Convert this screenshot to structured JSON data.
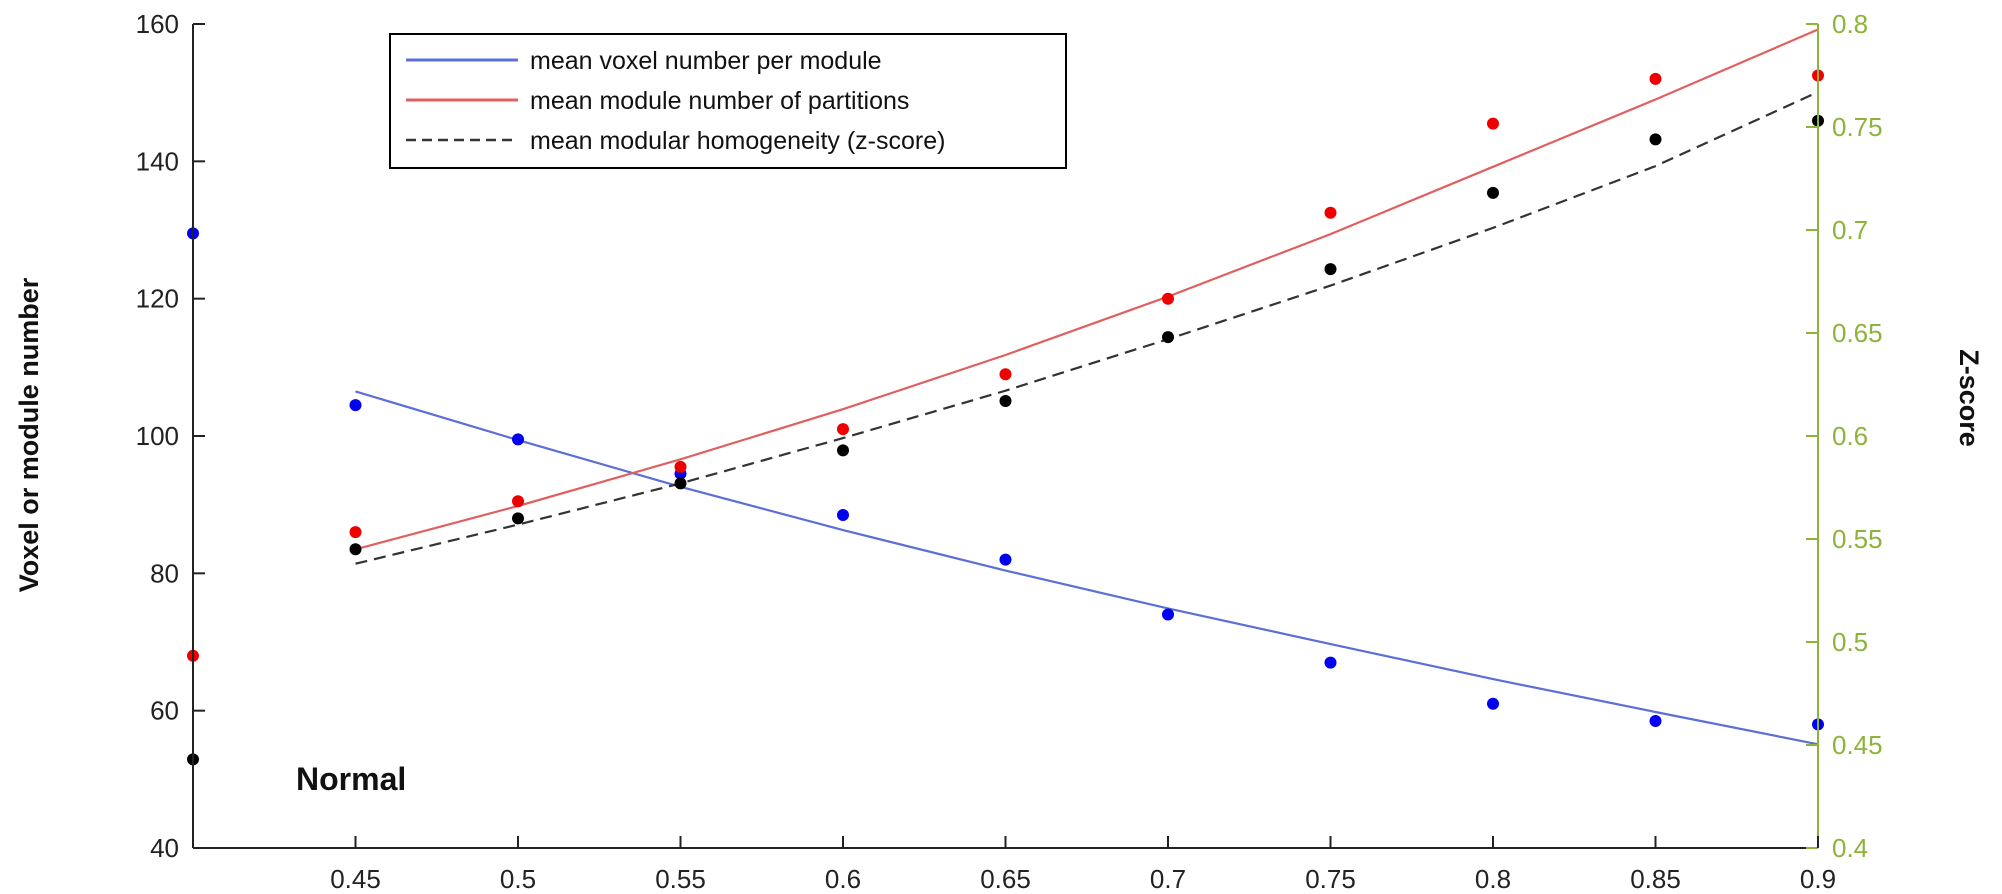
{
  "chart_data": {
    "type": "scatter",
    "annotation": "Normal",
    "ylabel_left": "Voxel or module number",
    "ylabel_right": "Z-score",
    "xlim": [
      0.4,
      0.9
    ],
    "ylim_left": [
      40,
      160
    ],
    "ylim_right": [
      0.4,
      0.8
    ],
    "x_ticks": [
      0.45,
      0.5,
      0.55,
      0.6,
      0.65,
      0.7,
      0.75,
      0.8,
      0.85,
      0.9
    ],
    "x_tick_labels": [
      "0.45",
      "0.5",
      "0.55",
      "0.6",
      "0.65",
      "0.7",
      "0.75",
      "0.8",
      "0.85",
      "0.9"
    ],
    "y_left_ticks": [
      40,
      60,
      80,
      100,
      120,
      140,
      160
    ],
    "y_left_tick_labels": [
      "40",
      "60",
      "80",
      "100",
      "120",
      "140",
      "160"
    ],
    "y_right_ticks": [
      0.4,
      0.45,
      0.5,
      0.55,
      0.6,
      0.65,
      0.7,
      0.75,
      0.8
    ],
    "y_right_tick_labels": [
      "0.4",
      "0.45",
      "0.5",
      "0.55",
      "0.6",
      "0.65",
      "0.7",
      "0.75",
      "0.8"
    ],
    "grid": false,
    "legend_position": "top-center",
    "series": [
      {
        "name": "mean voxel number per module",
        "axis": "left",
        "color": "#0000ee",
        "line_color": "#5b6fd6",
        "line_style": "solid",
        "points": [
          [
            0.4,
            129.5
          ],
          [
            0.45,
            104.5
          ],
          [
            0.5,
            99.5
          ],
          [
            0.55,
            94.5
          ],
          [
            0.6,
            88.5
          ],
          [
            0.65,
            82
          ],
          [
            0.7,
            74
          ],
          [
            0.75,
            67
          ],
          [
            0.8,
            61
          ],
          [
            0.85,
            58.5
          ],
          [
            0.9,
            58
          ]
        ],
        "fit": [
          [
            0.45,
            106.5
          ],
          [
            0.5,
            99.4
          ],
          [
            0.55,
            92.6
          ],
          [
            0.6,
            86.3
          ],
          [
            0.65,
            80.4
          ],
          [
            0.7,
            74.9
          ],
          [
            0.75,
            69.7
          ],
          [
            0.8,
            64.6
          ],
          [
            0.85,
            59.8
          ],
          [
            0.9,
            55.1
          ]
        ]
      },
      {
        "name": "mean module number of partitions",
        "axis": "left",
        "color": "#ee0000",
        "line_color": "#e06060",
        "line_style": "solid",
        "points": [
          [
            0.4,
            68
          ],
          [
            0.45,
            86
          ],
          [
            0.5,
            90.5
          ],
          [
            0.55,
            95.5
          ],
          [
            0.6,
            101
          ],
          [
            0.65,
            109
          ],
          [
            0.7,
            120
          ],
          [
            0.75,
            132.5
          ],
          [
            0.8,
            145.5
          ],
          [
            0.85,
            152
          ],
          [
            0.9,
            152.5
          ]
        ],
        "fit": [
          [
            0.45,
            83.5
          ],
          [
            0.5,
            89.8
          ],
          [
            0.55,
            96.6
          ],
          [
            0.6,
            103.9
          ],
          [
            0.65,
            111.8
          ],
          [
            0.7,
            120.3
          ],
          [
            0.75,
            129.4
          ],
          [
            0.8,
            139.2
          ],
          [
            0.85,
            149.0
          ],
          [
            0.9,
            159.2
          ]
        ]
      },
      {
        "name": "mean modular homogeneity (z-score)",
        "axis": "right",
        "color": "#000000",
        "line_color": "#333333",
        "line_style": "dashed",
        "points": [
          [
            0.4,
            0.443
          ],
          [
            0.45,
            0.545
          ],
          [
            0.5,
            0.56
          ],
          [
            0.55,
            0.577
          ],
          [
            0.6,
            0.593
          ],
          [
            0.65,
            0.617
          ],
          [
            0.7,
            0.648
          ],
          [
            0.75,
            0.681
          ],
          [
            0.8,
            0.718
          ],
          [
            0.85,
            0.744
          ],
          [
            0.9,
            0.753
          ]
        ],
        "fit": [
          [
            0.45,
            0.538
          ],
          [
            0.5,
            0.557
          ],
          [
            0.55,
            0.577
          ],
          [
            0.6,
            0.599
          ],
          [
            0.65,
            0.622
          ],
          [
            0.7,
            0.647
          ],
          [
            0.75,
            0.673
          ],
          [
            0.8,
            0.701
          ],
          [
            0.85,
            0.731
          ],
          [
            0.9,
            0.767
          ]
        ]
      }
    ]
  }
}
